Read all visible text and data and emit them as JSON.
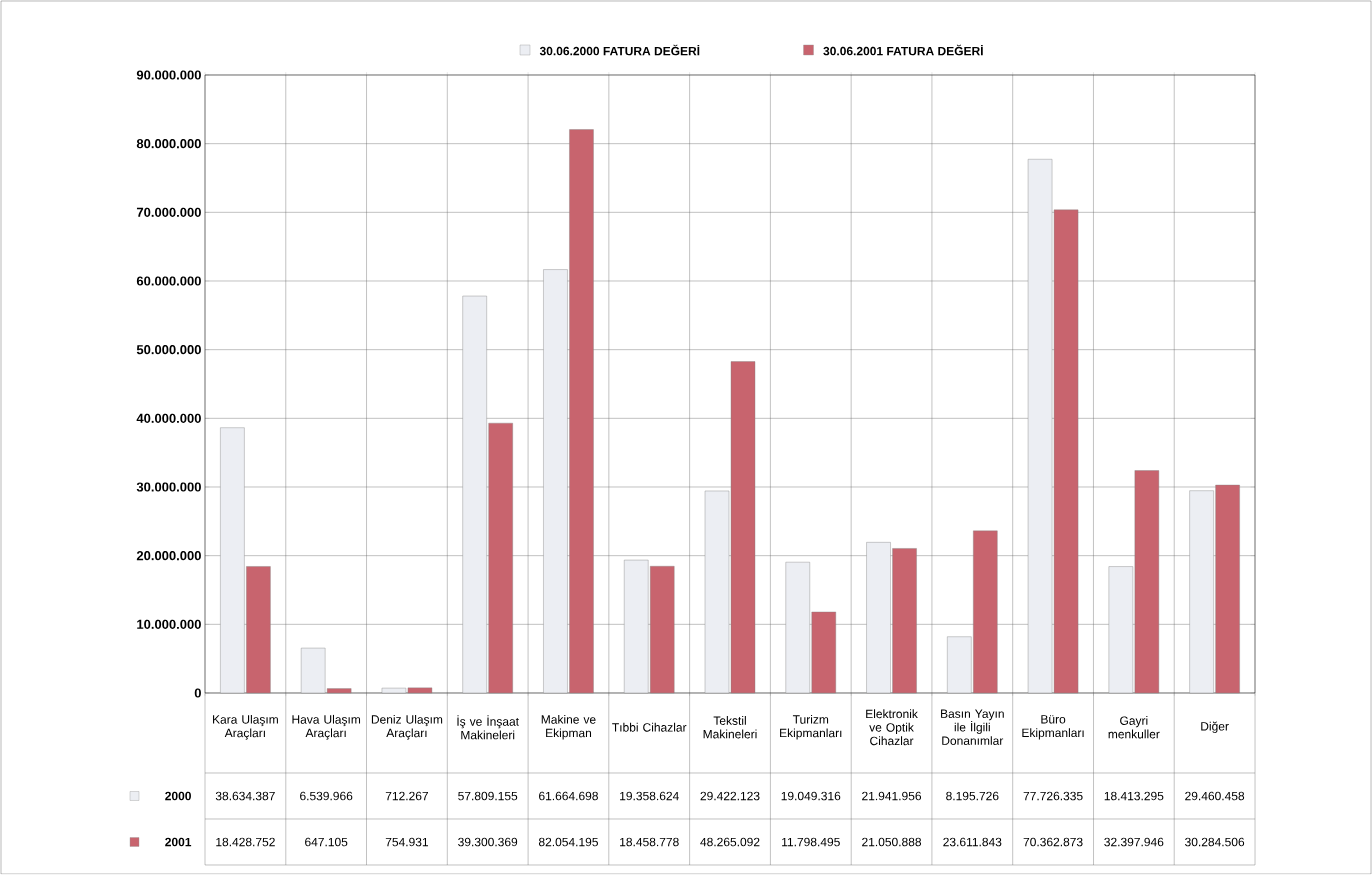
{
  "chart_data": {
    "type": "bar",
    "categories": [
      "Kara Ulaşım Araçları",
      "Hava Ulaşım Araçları",
      "Deniz Ulaşım Araçları",
      "İş ve İnşaat Makineleri",
      "Makine ve Ekipman",
      "Tıbbi Cihazlar",
      "Tekstil Makineleri",
      "Turizm Ekipmanları",
      "Elektronik ve Optik Cihazlar",
      "Basın Yayın ile İlgili Donanımlar",
      "Büro Ekipmanları",
      "Gayri menkuller",
      "Diğer"
    ],
    "series": [
      {
        "name": "30.06.2000 FATURA DEĞERİ",
        "color": "#eceef3",
        "values": [
          38634387,
          6539966,
          712267,
          57809155,
          61664698,
          19358624,
          29422123,
          19049316,
          21941956,
          8195726,
          77726335,
          18413295,
          29460458
        ],
        "value_labels": [
          "38.634.387",
          "6.539.966",
          "712.267",
          "57.809.155",
          "61.664.698",
          "19.358.624",
          "29.422.123",
          "19.049.316",
          "21.941.956",
          "8.195.726",
          "77.726.335",
          "18.413.295",
          "29.460.458"
        ]
      },
      {
        "name": "30.06.2001 FATURA DEĞERİ",
        "color": "#c8646e",
        "values": [
          18428752,
          647105,
          754931,
          39300369,
          82054195,
          18458778,
          48265092,
          11798495,
          21050888,
          23611843,
          70362873,
          32397946,
          30284506
        ],
        "value_labels": [
          "18.428.752",
          "647.105",
          "754.931",
          "39.300.369",
          "82.054.195",
          "18.458.778",
          "48.265.092",
          "11.798.495",
          "21.050.888",
          "23.611.843",
          "70.362.873",
          "32.397.946",
          "30.284.506"
        ]
      }
    ],
    "ylim": [
      0,
      90000000
    ],
    "yticks": [
      {
        "value": 0,
        "label": "0"
      },
      {
        "value": 10000000,
        "label": "10.000.000"
      },
      {
        "value": 20000000,
        "label": "20.000.000"
      },
      {
        "value": 30000000,
        "label": "30.000.000"
      },
      {
        "value": 40000000,
        "label": "40.000.000"
      },
      {
        "value": 50000000,
        "label": "50.000.000"
      },
      {
        "value": 60000000,
        "label": "60.000.000"
      },
      {
        "value": 70000000,
        "label": "70.000.000"
      },
      {
        "value": 80000000,
        "label": "80.000.000"
      },
      {
        "value": 90000000,
        "label": "90.000.000"
      }
    ],
    "annotations": [
      "2000",
      "2001"
    ],
    "grid": true,
    "legend": "top"
  }
}
